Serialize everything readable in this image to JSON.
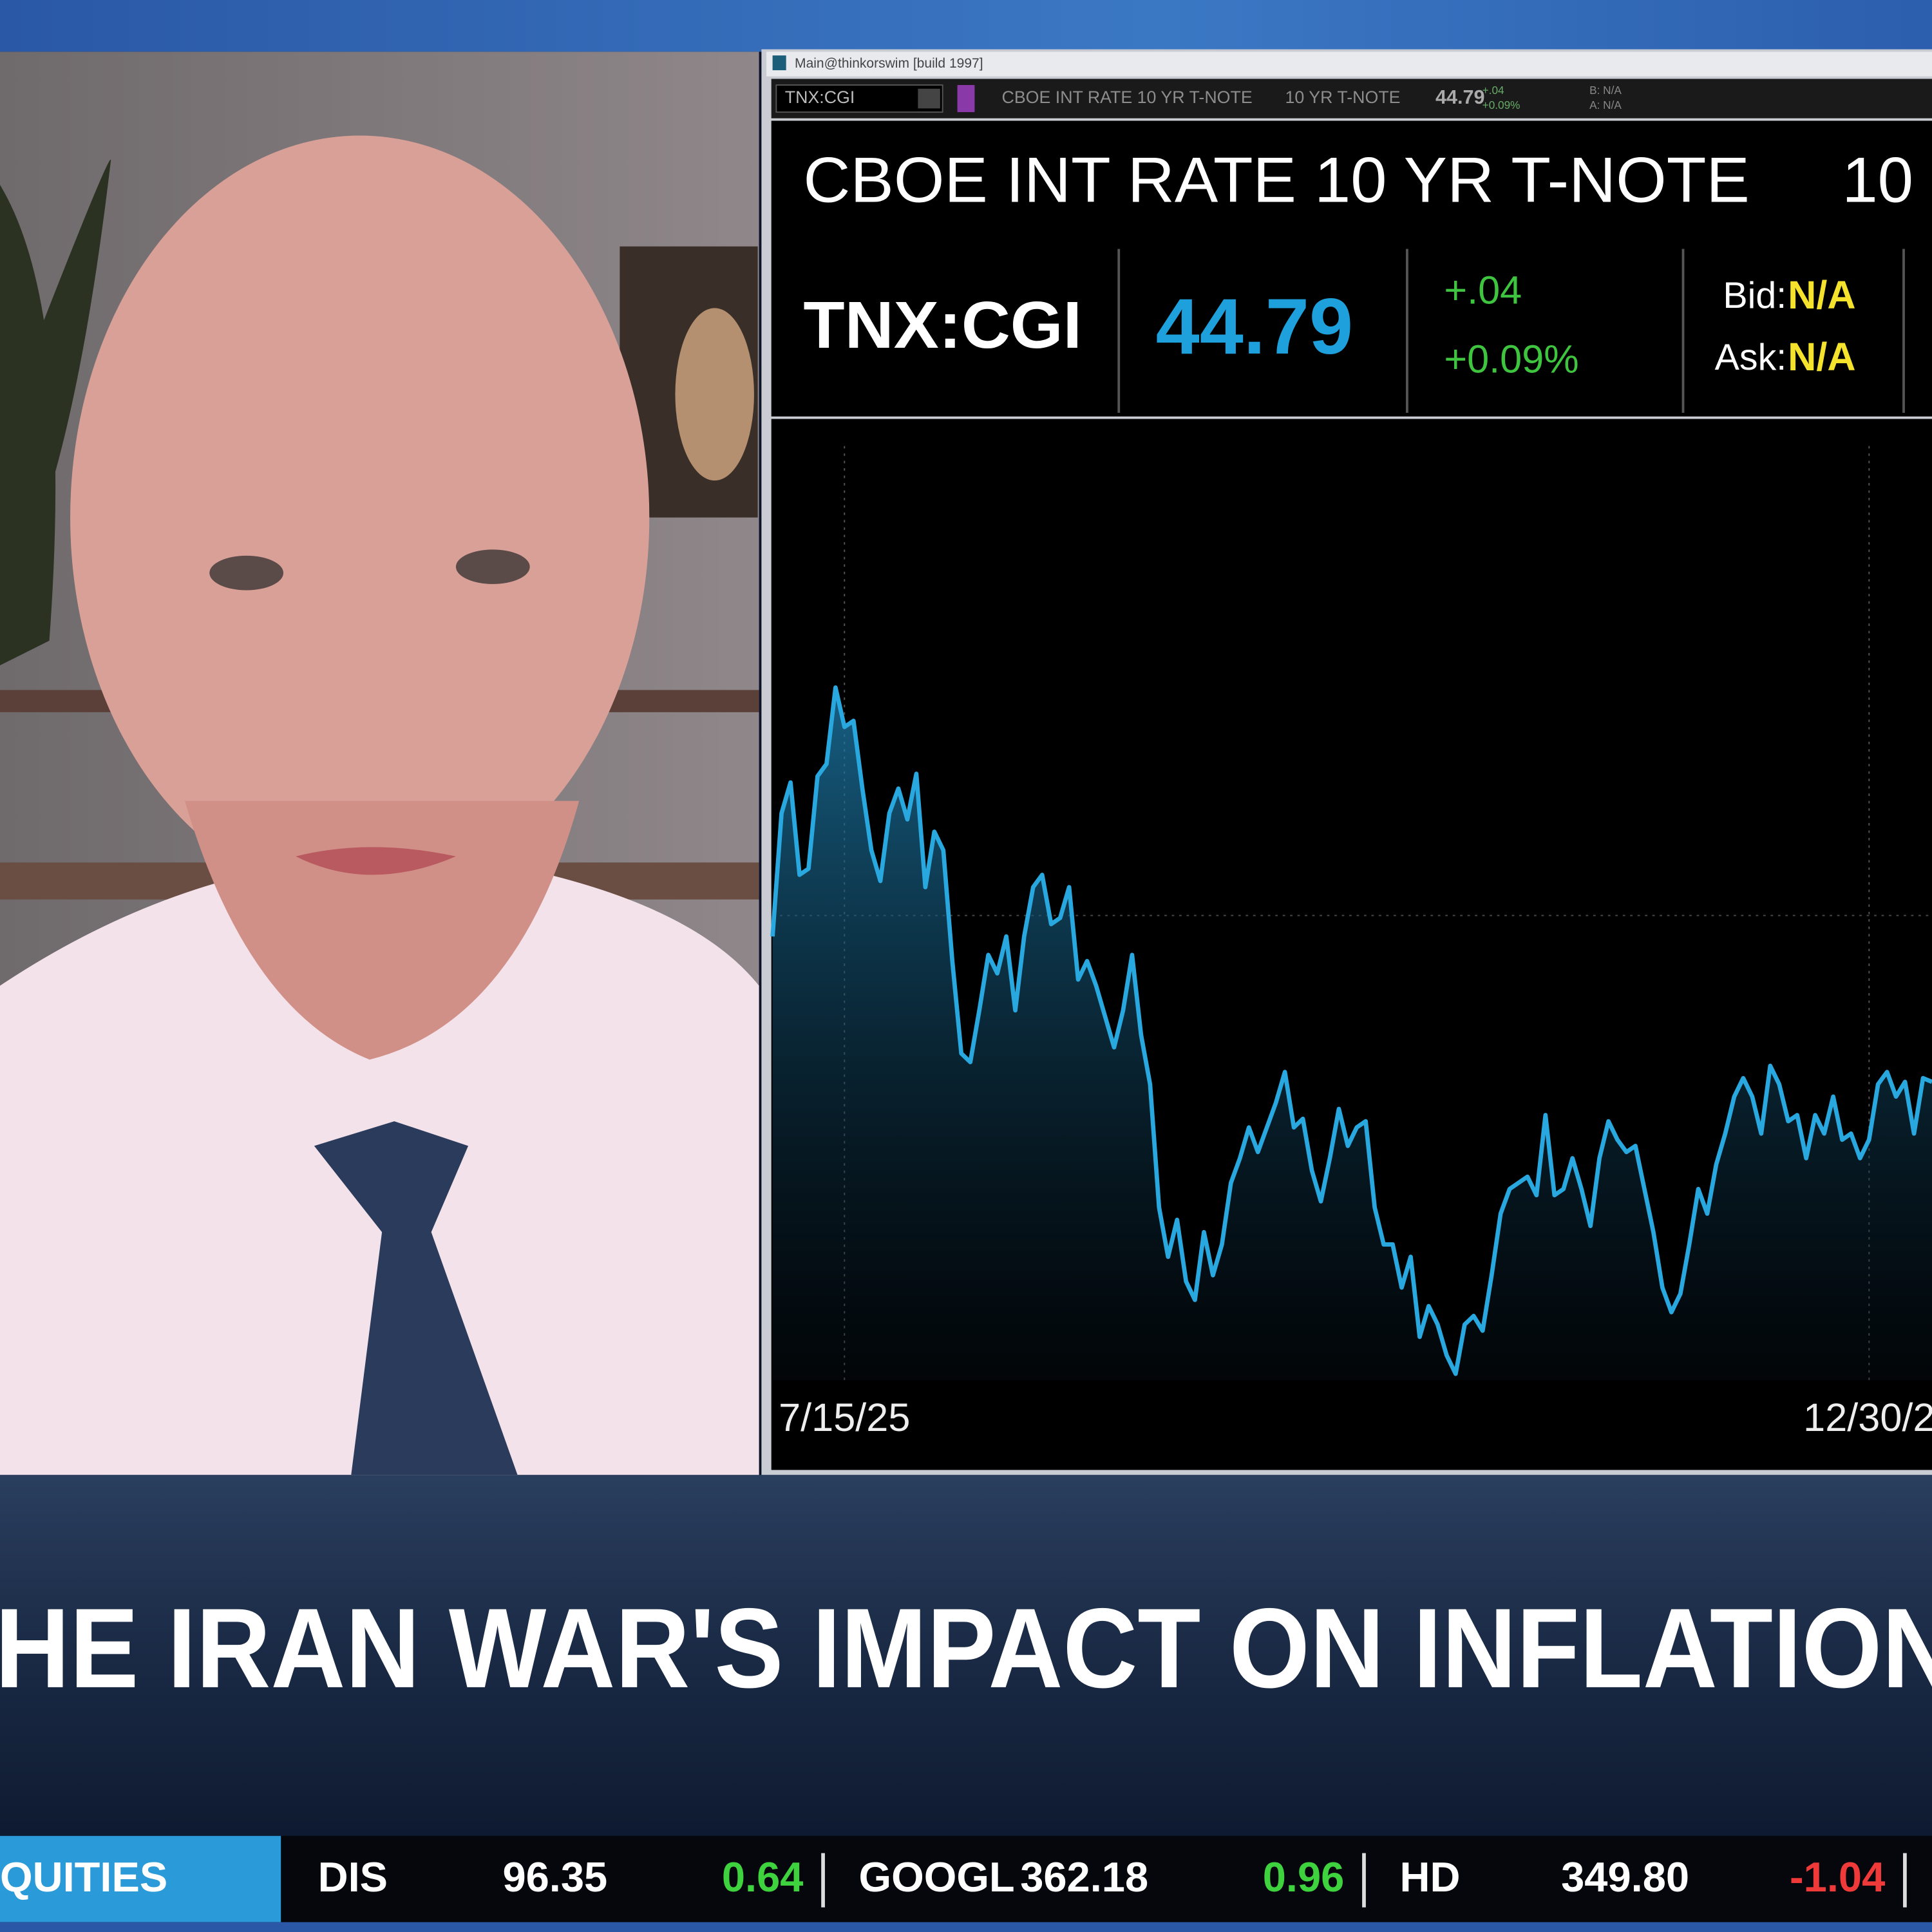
{
  "window_title": "Main@thinkorswim [build 1997]",
  "toolbar": {
    "symbol": "TNX:CGI",
    "description": "CBOE INT RATE 10 YR T-NOTE",
    "short_name": "10 YR T-NOTE",
    "last": "44.79",
    "change": "+.04",
    "change_pct": "+0.09%",
    "bid": "B: N/A",
    "ask": "A: N/A"
  },
  "quote": {
    "title": "CBOE INT RATE 10 YR T-NOTE",
    "title_right": "10",
    "symbol": "TNX:CGI",
    "last": "44.79",
    "change": "+.04",
    "change_pct": "+0.09%",
    "bid_label": "Bid:",
    "bid": "N/A",
    "ask_label": "Ask:",
    "ask": "N/A"
  },
  "chart_data": {
    "type": "line",
    "color": "#29a8e0",
    "ylim": [
      0,
      77.5
    ],
    "categories": [
      null,
      null,
      null,
      null,
      null,
      null,
      null,
      null,
      "7/15/25",
      null,
      null,
      null,
      null,
      null,
      null,
      null,
      null,
      null,
      null,
      null,
      null,
      null,
      null,
      null,
      null,
      null,
      null,
      null,
      null,
      null,
      null,
      null,
      null,
      null,
      null,
      null,
      null,
      null,
      null,
      null,
      null,
      null,
      null,
      null,
      null,
      null,
      null,
      null,
      null,
      null,
      null,
      null,
      null,
      null,
      null,
      null,
      null,
      null,
      null,
      null,
      null,
      null,
      null,
      null,
      null,
      null,
      null,
      null,
      null,
      null,
      null,
      null,
      null,
      null,
      null,
      null,
      null,
      null,
      null,
      null,
      null,
      null,
      null,
      null,
      null,
      null,
      null,
      null,
      null,
      null,
      null,
      null,
      null,
      null,
      null,
      null,
      null,
      null,
      null,
      null,
      null,
      null,
      null,
      null,
      null,
      null,
      null,
      null,
      null,
      null,
      null,
      null,
      null,
      null,
      null,
      null,
      null,
      null,
      null,
      null,
      null,
      null,
      "12/30/2",
      null,
      null,
      null,
      null,
      null,
      null,
      null
    ],
    "values": [
      36,
      46,
      48.5,
      41,
      41.5,
      49,
      50,
      56.2,
      53,
      53.5,
      48,
      43,
      40.5,
      46,
      48,
      45.5,
      49.2,
      40,
      44.5,
      43,
      34,
      26.5,
      25.8,
      30,
      34.5,
      33,
      36,
      30,
      36,
      40,
      41,
      37,
      37.5,
      40,
      32.5,
      34,
      32,
      29.5,
      27,
      30,
      34.5,
      28,
      24,
      14,
      10,
      13,
      8,
      6.5,
      12,
      8.5,
      11,
      16,
      18,
      20.5,
      18.5,
      20.5,
      22.5,
      25,
      20.5,
      21.2,
      17,
      14.5,
      18,
      22,
      19,
      20.5,
      21,
      14,
      11,
      11,
      7.5,
      10,
      3.5,
      6,
      4.5,
      2,
      0.5,
      4.5,
      5.2,
      4,
      8.5,
      13.5,
      15.5,
      16,
      16.5,
      15,
      21.5,
      15,
      15.5,
      18,
      15.5,
      12.5,
      18,
      21,
      19.5,
      18.5,
      19,
      15.5,
      12,
      7.5,
      5.5,
      7,
      11,
      15.5,
      13.5,
      17.5,
      20,
      23,
      24.5,
      23,
      20,
      25.5,
      24,
      21,
      21.5,
      18,
      21.5,
      20,
      23,
      19.5,
      20,
      18,
      19.5,
      24,
      25,
      23,
      24.2,
      20,
      24.5,
      24.2
    ]
  },
  "headline": "HE IRAN WAR'S IMPACT ON INFLATION",
  "ticker": {
    "section": "QUITIES",
    "items": [
      {
        "symbol": "DIS",
        "price": "96.35",
        "change": "0.64"
      },
      {
        "symbol": "GOOGL",
        "price": "362.18",
        "change": "0.96"
      },
      {
        "symbol": "HD",
        "price": "349.80",
        "change": "-1.04"
      }
    ]
  }
}
